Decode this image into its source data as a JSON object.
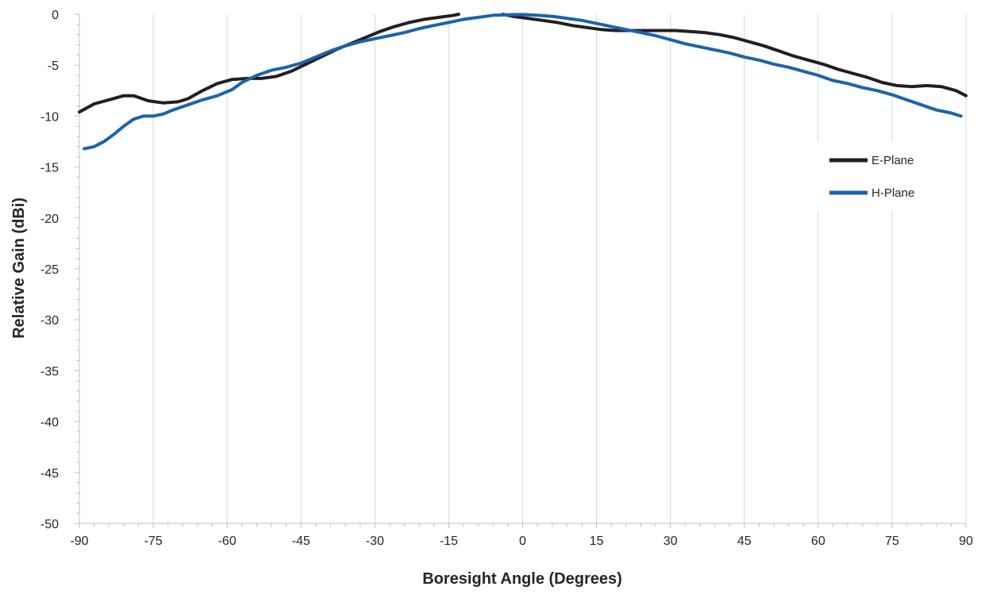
{
  "chart_data": {
    "type": "line",
    "title": "",
    "xlabel": "Boresight Angle (Degrees)",
    "ylabel": "Relative Gain (dBi)",
    "xlim": [
      -90,
      90
    ],
    "ylim": [
      -50,
      0
    ],
    "x_ticks": [
      -90,
      -75,
      -60,
      -45,
      -30,
      -15,
      0,
      15,
      30,
      45,
      60,
      75,
      90
    ],
    "y_ticks": [
      0,
      -5,
      -10,
      -15,
      -20,
      -25,
      -30,
      -35,
      -40,
      -45,
      -50
    ],
    "x_tick_labels": [
      "-90",
      "-75",
      "-60",
      "-45",
      "-30",
      "-15",
      "0",
      "15",
      "30",
      "45",
      "60",
      "75",
      "90"
    ],
    "y_tick_labels": [
      "0",
      "-5",
      "-10",
      "-15",
      "-20",
      "-25",
      "-30",
      "-35",
      "-40",
      "-45",
      "-50"
    ],
    "grid": "vertical",
    "legend_position": "right",
    "series": [
      {
        "name": "E-Plane",
        "color": "#231f20",
        "segments": [
          [
            [
              -90,
              -9.6
            ],
            [
              -87,
              -8.8
            ],
            [
              -84,
              -8.4
            ],
            [
              -81,
              -8.0
            ],
            [
              -79,
              -8.0
            ],
            [
              -76,
              -8.5
            ],
            [
              -73,
              -8.7
            ],
            [
              -70,
              -8.6
            ],
            [
              -68,
              -8.3
            ],
            [
              -65,
              -7.5
            ],
            [
              -62,
              -6.8
            ],
            [
              -59,
              -6.4
            ],
            [
              -56,
              -6.3
            ],
            [
              -53,
              -6.3
            ],
            [
              -50,
              -6.1
            ],
            [
              -47,
              -5.6
            ],
            [
              -44,
              -4.9
            ],
            [
              -41,
              -4.2
            ],
            [
              -38,
              -3.5
            ],
            [
              -35,
              -2.9
            ],
            [
              -32,
              -2.3
            ],
            [
              -29,
              -1.7
            ],
            [
              -26,
              -1.2
            ],
            [
              -23,
              -0.8
            ],
            [
              -20,
              -0.5
            ],
            [
              -17,
              -0.3
            ],
            [
              -14,
              -0.1
            ],
            [
              -13,
              0.0
            ]
          ],
          [
            [
              -4,
              0.0
            ],
            [
              -2,
              -0.2
            ],
            [
              1,
              -0.4
            ],
            [
              4,
              -0.6
            ],
            [
              7,
              -0.8
            ],
            [
              10,
              -1.1
            ],
            [
              13,
              -1.3
            ],
            [
              16,
              -1.5
            ],
            [
              19,
              -1.6
            ],
            [
              22,
              -1.6
            ],
            [
              25,
              -1.6
            ],
            [
              28,
              -1.6
            ],
            [
              31,
              -1.6
            ],
            [
              34,
              -1.7
            ],
            [
              37,
              -1.8
            ],
            [
              40,
              -2.0
            ],
            [
              43,
              -2.3
            ],
            [
              46,
              -2.7
            ],
            [
              49,
              -3.1
            ],
            [
              52,
              -3.6
            ],
            [
              55,
              -4.1
            ],
            [
              58,
              -4.5
            ],
            [
              61,
              -4.9
            ],
            [
              64,
              -5.4
            ],
            [
              67,
              -5.8
            ],
            [
              70,
              -6.2
            ],
            [
              73,
              -6.7
            ],
            [
              76,
              -7.0
            ],
            [
              79,
              -7.1
            ],
            [
              82,
              -7.0
            ],
            [
              85,
              -7.1
            ],
            [
              88,
              -7.5
            ],
            [
              90,
              -8.0
            ]
          ]
        ]
      },
      {
        "name": "H-Plane",
        "color": "#1b63ac",
        "segments": [
          [
            [
              -89,
              -13.2
            ],
            [
              -87,
              -13.0
            ],
            [
              -85,
              -12.5
            ],
            [
              -83,
              -11.8
            ],
            [
              -81,
              -11.0
            ],
            [
              -79,
              -10.3
            ],
            [
              -77,
              -10.0
            ],
            [
              -75,
              -10.0
            ],
            [
              -73,
              -9.8
            ],
            [
              -71,
              -9.4
            ],
            [
              -68,
              -8.9
            ],
            [
              -65,
              -8.4
            ],
            [
              -62,
              -8.0
            ],
            [
              -59,
              -7.4
            ],
            [
              -57,
              -6.7
            ],
            [
              -54,
              -6.0
            ],
            [
              -51,
              -5.5
            ],
            [
              -48,
              -5.2
            ],
            [
              -45,
              -4.8
            ],
            [
              -42,
              -4.2
            ],
            [
              -39,
              -3.6
            ],
            [
              -36,
              -3.1
            ],
            [
              -33,
              -2.7
            ],
            [
              -30,
              -2.4
            ],
            [
              -27,
              -2.1
            ],
            [
              -24,
              -1.8
            ],
            [
              -21,
              -1.4
            ],
            [
              -18,
              -1.1
            ],
            [
              -15,
              -0.8
            ],
            [
              -12,
              -0.5
            ],
            [
              -9,
              -0.3
            ],
            [
              -6,
              -0.1
            ],
            [
              -3,
              -0.05
            ],
            [
              0,
              -0.02
            ],
            [
              3,
              -0.1
            ],
            [
              6,
              -0.2
            ],
            [
              9,
              -0.4
            ],
            [
              12,
              -0.6
            ],
            [
              15,
              -0.9
            ],
            [
              18,
              -1.2
            ],
            [
              21,
              -1.5
            ],
            [
              24,
              -1.8
            ],
            [
              27,
              -2.1
            ],
            [
              30,
              -2.5
            ],
            [
              33,
              -2.9
            ],
            [
              36,
              -3.2
            ],
            [
              39,
              -3.5
            ],
            [
              42,
              -3.8
            ],
            [
              45,
              -4.2
            ],
            [
              48,
              -4.5
            ],
            [
              51,
              -4.9
            ],
            [
              54,
              -5.2
            ],
            [
              57,
              -5.6
            ],
            [
              60,
              -6.0
            ],
            [
              63,
              -6.5
            ],
            [
              66,
              -6.8
            ],
            [
              69,
              -7.2
            ],
            [
              72,
              -7.5
            ],
            [
              75,
              -7.9
            ],
            [
              78,
              -8.4
            ],
            [
              81,
              -8.9
            ],
            [
              84,
              -9.4
            ],
            [
              87,
              -9.7
            ],
            [
              89,
              -10.0
            ]
          ]
        ]
      }
    ]
  }
}
